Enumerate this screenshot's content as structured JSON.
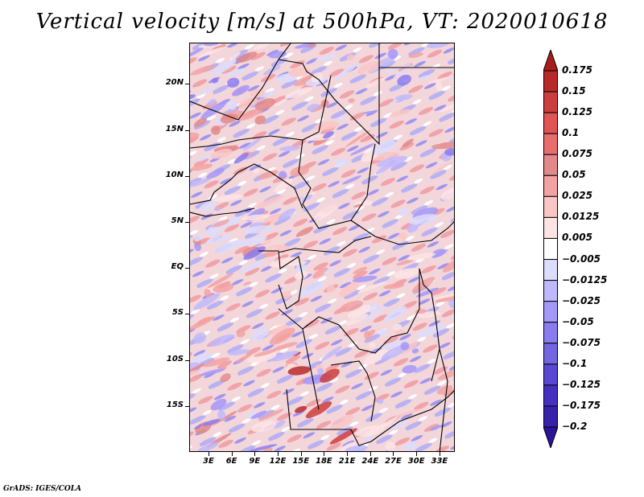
{
  "title": "Vertical velocity [m/s] at 500hPa, VT: 2020010618",
  "footer": "GrADS: IGES/COLA",
  "map": {
    "variable": "Vertical velocity",
    "units": "m/s",
    "level": "500hPa",
    "valid_time": "2020010618",
    "lat_labels": [
      "20N",
      "15N",
      "10N",
      "5N",
      "EQ",
      "5S",
      "10S",
      "15S"
    ],
    "lat_values": [
      20,
      15,
      10,
      5,
      0,
      -5,
      -10,
      -15
    ],
    "lon_labels": [
      "3E",
      "6E",
      "9E",
      "12E",
      "15E",
      "18E",
      "21E",
      "24E",
      "27E",
      "30E",
      "33E"
    ],
    "lon_values": [
      3,
      6,
      9,
      12,
      15,
      18,
      21,
      24,
      27,
      30,
      33
    ],
    "lat_range": [
      -20,
      24.5
    ],
    "lon_range": [
      0.5,
      35
    ]
  },
  "colorbar": {
    "labels": [
      "0.175",
      "0.15",
      "0.125",
      "0.1",
      "0.075",
      "0.05",
      "0.025",
      "0.0125",
      "0.005",
      "−0.005",
      "−0.0125",
      "−0.025",
      "−0.05",
      "−0.075",
      "−0.1",
      "−0.125",
      "−0.175",
      "−0.2"
    ],
    "colors": [
      "#a91c1c",
      "#b82a2a",
      "#cc3d3d",
      "#e05454",
      "#e86e6e",
      "#e28a8a",
      "#f2a2a2",
      "#f9c6c6",
      "#fde4e4",
      "#ffffff",
      "#dcdcfb",
      "#bfb8fa",
      "#a498f8",
      "#8a7cf0",
      "#7366e0",
      "#5a48d2",
      "#4430c0",
      "#3722aa",
      "#2c1498"
    ],
    "top_arrow_color": "#a91c1c",
    "bottom_arrow_color": "#2c1498"
  }
}
